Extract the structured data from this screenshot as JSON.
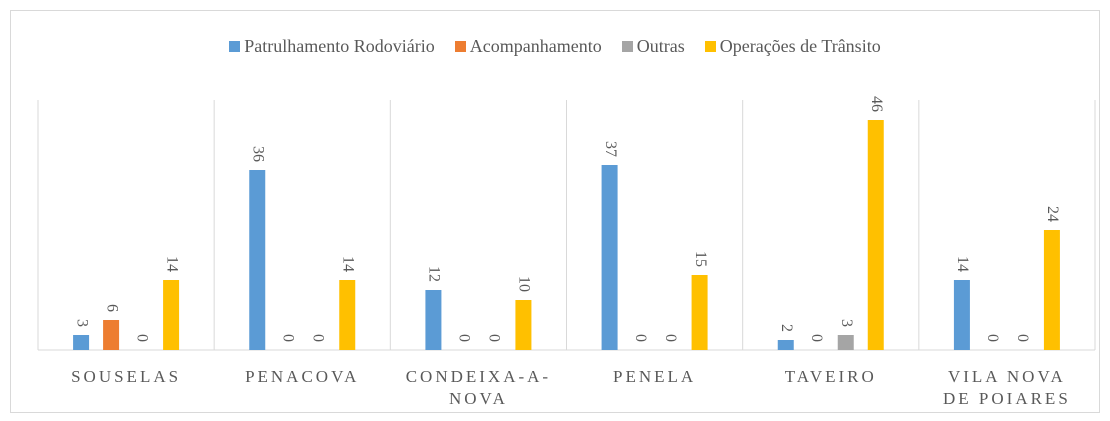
{
  "chart_data": {
    "type": "bar",
    "categories": [
      "SOUSELAS",
      "PENACOVA",
      "CONDEIXA-A-NOVA",
      "PENELA",
      "TAVEIRO",
      "VILA NOVA DE POIARES"
    ],
    "series": [
      {
        "name": "Patrulhamento Rodoviário",
        "color": "#5b9bd5",
        "values": [
          3,
          36,
          12,
          37,
          2,
          14
        ]
      },
      {
        "name": "Acompanhamento",
        "color": "#ed7d31",
        "values": [
          6,
          0,
          0,
          0,
          0,
          0
        ]
      },
      {
        "name": "Outras",
        "color": "#a5a5a5",
        "values": [
          0,
          0,
          0,
          0,
          3,
          0
        ]
      },
      {
        "name": "Operações de Trânsito",
        "color": "#ffc000",
        "values": [
          14,
          14,
          10,
          15,
          46,
          24
        ]
      }
    ],
    "ylim": [
      0,
      50
    ],
    "legend": "top"
  }
}
